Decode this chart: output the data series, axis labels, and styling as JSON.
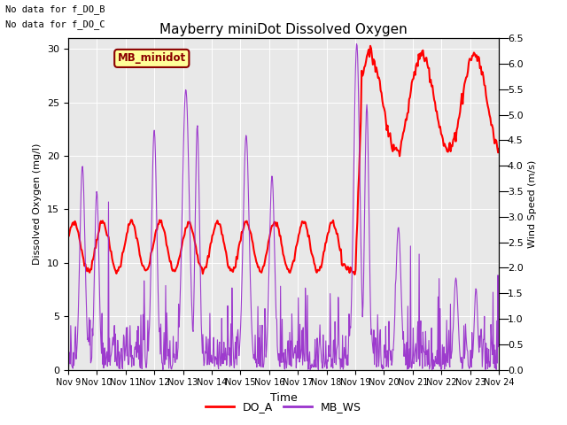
{
  "title": "Mayberry miniDot Dissolved Oxygen",
  "xlabel": "Time",
  "ylabel_left": "Dissolved Oxygen (mg/l)",
  "ylabel_right": "Wind Speed (m/s)",
  "text_annotations": [
    "No data for f_DO_B",
    "No data for f_DO_C"
  ],
  "box_label": "MB_minidot",
  "box_facecolor": "#FFFF99",
  "box_edgecolor": "#8B0000",
  "box_textcolor": "#8B0000",
  "ylim_left": [
    0,
    31
  ],
  "ylim_right": [
    0,
    6.5
  ],
  "yticks_left": [
    0,
    5,
    10,
    15,
    20,
    25,
    30
  ],
  "yticks_right": [
    0.0,
    0.5,
    1.0,
    1.5,
    2.0,
    2.5,
    3.0,
    3.5,
    4.0,
    4.5,
    5.0,
    5.5,
    6.0,
    6.5
  ],
  "xtick_labels": [
    "Nov 9",
    "Nov 10",
    "Nov 11",
    "Nov 12",
    "Nov 13",
    "Nov 14",
    "Nov 15",
    "Nov 16",
    "Nov 17",
    "Nov 18",
    "Nov 19",
    "Nov 20",
    "Nov 21",
    "Nov 22",
    "Nov 23",
    "Nov 24"
  ],
  "background_color": "#E8E8E8",
  "do_color": "#FF0000",
  "ws_color": "#9932CC",
  "legend_entries": [
    "DO_A",
    "MB_WS"
  ],
  "legend_colors": [
    "#FF0000",
    "#9932CC"
  ],
  "do_linewidth": 1.5,
  "ws_linewidth": 0.8,
  "n_days": 15,
  "figsize": [
    6.4,
    4.8
  ],
  "dpi": 100
}
